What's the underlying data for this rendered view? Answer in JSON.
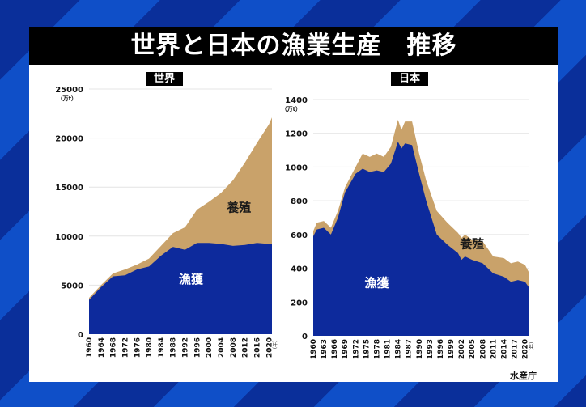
{
  "title": "世界と日本の漁業生産　推移",
  "source": "水産庁",
  "colors": {
    "capture": "#0d2a9c",
    "aquaculture": "#c9a26a",
    "background_stripe_dark": "#0a2f9a",
    "background_stripe_light": "#0f4fc8",
    "title_bar": "#000000"
  },
  "chart_data": [
    {
      "type": "area",
      "stacked": true,
      "title": "世界",
      "ylabel": "（万t）",
      "xlabel": "（年）",
      "ylim": [
        0,
        25000
      ],
      "yticks": [
        0,
        5000,
        10000,
        15000,
        20000,
        25000
      ],
      "xticks": [
        "1960",
        "1964",
        "1968",
        "1972",
        "1976",
        "1980",
        "1984",
        "1988",
        "1992",
        "1996",
        "2000",
        "2004",
        "2008",
        "2012",
        "2016",
        "2020"
      ],
      "grid": true,
      "x": [
        1960,
        1964,
        1968,
        1972,
        1976,
        1980,
        1984,
        1988,
        1992,
        1996,
        2000,
        2004,
        2008,
        2012,
        2016,
        2020,
        2021
      ],
      "series": [
        {
          "name": "漁獲",
          "values": [
            3500,
            4800,
            5900,
            6000,
            6600,
            6900,
            8000,
            8900,
            8600,
            9300,
            9300,
            9200,
            9000,
            9100,
            9300,
            9200,
            9200
          ]
        },
        {
          "name": "養殖",
          "values": [
            200,
            200,
            300,
            600,
            500,
            800,
            1000,
            1400,
            2300,
            3400,
            4200,
            5200,
            6700,
            8400,
            10200,
            12200,
            12900
          ]
        }
      ],
      "annotations": [
        {
          "text": "養殖",
          "x": 2010,
          "y": 12500
        },
        {
          "text": "漁獲",
          "x": 1994,
          "y": 5200
        }
      ]
    },
    {
      "type": "area",
      "stacked": true,
      "title": "日本",
      "ylabel": "（万t）",
      "xlabel": "（年）",
      "ylim": [
        0,
        1400
      ],
      "yticks": [
        0,
        200,
        400,
        600,
        800,
        1000,
        1200,
        1400
      ],
      "xticks": [
        "1960",
        "1963",
        "1966",
        "1969",
        "1972",
        "1975",
        "1978",
        "1981",
        "1984",
        "1987",
        "1990",
        "1993",
        "1996",
        "1999",
        "2002",
        "2005",
        "2008",
        "2011",
        "2014",
        "2017",
        "2020"
      ],
      "grid": true,
      "x": [
        1960,
        1961,
        1963,
        1965,
        1967,
        1969,
        1972,
        1974,
        1976,
        1978,
        1980,
        1982,
        1984,
        1985,
        1986,
        1988,
        1990,
        1992,
        1995,
        1998,
        2001,
        2002,
        2003,
        2005,
        2008,
        2011,
        2014,
        2016,
        2018,
        2020,
        2021
      ],
      "series": [
        {
          "name": "漁獲",
          "values": [
            590,
            630,
            640,
            600,
            700,
            850,
            960,
            990,
            970,
            980,
            970,
            1020,
            1150,
            1110,
            1140,
            1130,
            960,
            800,
            600,
            540,
            490,
            450,
            470,
            450,
            430,
            370,
            350,
            320,
            330,
            320,
            290
          ]
        },
        {
          "name": "養殖",
          "values": [
            30,
            40,
            40,
            40,
            40,
            30,
            40,
            90,
            90,
            100,
            90,
            100,
            130,
            110,
            130,
            140,
            120,
            120,
            140,
            130,
            120,
            130,
            130,
            120,
            130,
            100,
            110,
            110,
            110,
            100,
            90
          ]
        }
      ],
      "annotations": [
        {
          "text": "養殖",
          "x": 2005,
          "y": 520
        },
        {
          "text": "漁獲",
          "x": 1978,
          "y": 290
        }
      ]
    }
  ]
}
